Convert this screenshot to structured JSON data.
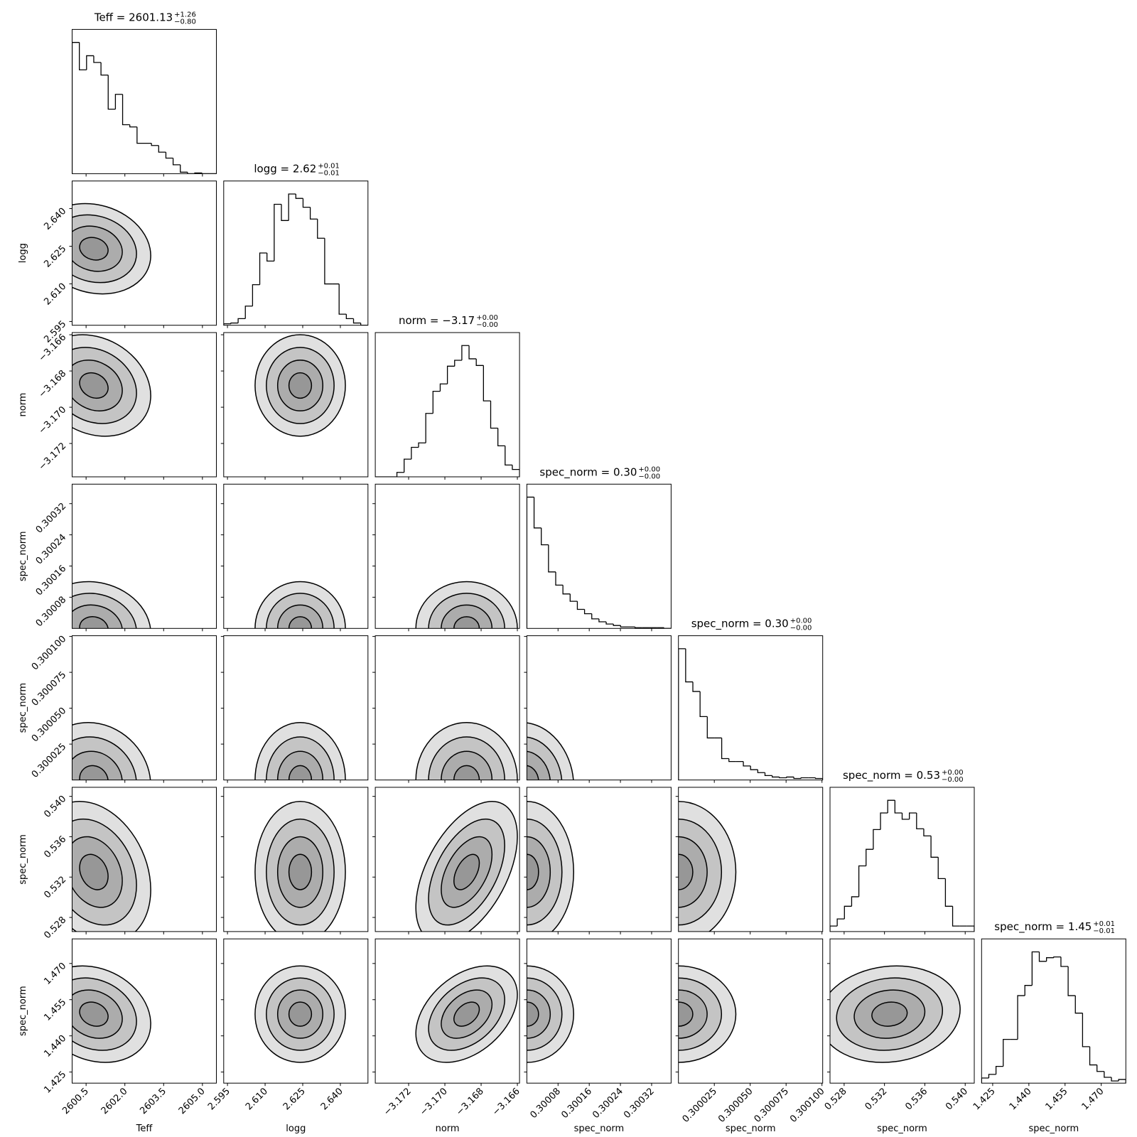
{
  "chart_data": {
    "type": "corner",
    "color": "#000000",
    "levels": [
      0.5,
      1,
      1.5,
      2
    ],
    "params": [
      {
        "name": "Teff",
        "title": "Teff = 2601.13",
        "plus": "+1.26",
        "minus": "−0.80",
        "lim": [
          2599.96,
          2605.54
        ],
        "ticks": [
          2600.5,
          {
            "value": 2602,
            "label": "2602.0"
          },
          2603.5,
          {
            "value": 2605,
            "label": "2605.0"
          }
        ],
        "bins": [
          2599.96,
          2600.239,
          2600.518,
          2600.797,
          2601.076,
          2601.355,
          2601.634,
          2601.913,
          2602.192,
          2602.471,
          2602.75,
          2603.029,
          2603.308,
          2603.587,
          2603.866,
          2604.145,
          2604.424,
          2604.703,
          2604.982,
          2605.261,
          2605.54
        ],
        "counts": [
          177,
          140,
          159,
          150,
          133,
          87,
          107,
          66,
          63,
          41,
          41,
          38,
          29,
          21,
          12,
          2,
          0,
          1,
          0,
          0
        ],
        "mean": 2600.8,
        "sigma": 1.1
      },
      {
        "name": "logg",
        "title": "logg = 2.62",
        "plus": "+0.01",
        "minus": "−0.01",
        "lim": [
          2.5935,
          2.651
        ],
        "ticks": [
          2.595,
          {
            "value": 2.61,
            "label": "2.610"
          },
          2.625,
          {
            "value": 2.64,
            "label": "2.640"
          }
        ],
        "bins": [
          2.5935,
          2.596375,
          2.59925,
          2.602125,
          2.605,
          2.607875,
          2.61075,
          2.613625,
          2.6165,
          2.619375,
          2.62225,
          2.625125,
          2.628,
          2.630875,
          2.63375,
          2.636625,
          2.6395,
          2.642375,
          2.64525,
          2.648125,
          2.651
        ],
        "counts": [
          2,
          3,
          9,
          26,
          55,
          98,
          87,
          164,
          142,
          178,
          172,
          160,
          144,
          118,
          56,
          56,
          15,
          9,
          3,
          0
        ],
        "mean": 2.624,
        "sigma": 0.009
      },
      {
        "name": "norm",
        "title": "norm = −3.17",
        "plus": "+0.00",
        "minus": "−0.00",
        "lim": [
          -3.17384,
          -3.16588
        ],
        "ticks": [
          {
            "value": -3.172,
            "label": "−3.172"
          },
          {
            "value": -3.17,
            "label": "−3.170"
          },
          {
            "value": -3.168,
            "label": "−3.168"
          },
          {
            "value": -3.166,
            "label": "−3.166"
          }
        ],
        "bins": [
          -3.17384,
          -3.173442,
          -3.173044,
          -3.172646,
          -3.172248,
          -3.17185,
          -3.171452,
          -3.171054,
          -3.170656,
          -3.170258,
          -3.16986,
          -3.169462,
          -3.169064,
          -3.168666,
          -3.168268,
          -3.16787,
          -3.167472,
          -3.167074,
          -3.166676,
          -3.166278,
          -3.16588
        ],
        "counts": [
          0,
          0,
          0,
          6,
          24,
          40,
          46,
          86,
          116,
          126,
          150,
          158,
          178,
          160,
          151,
          103,
          66,
          42,
          16,
          10
        ],
        "mean": -3.1688,
        "sigma": 0.0014
      },
      {
        "name": "spec_norm",
        "title": "spec_norm = 0.30",
        "plus": "+0.00",
        "minus": "−0.00",
        "lim": [
          0.3,
          0.30037
        ],
        "ticks": [
          0.30008,
          0.30016,
          0.30024,
          0.30032
        ],
        "bins": [
          0.3,
          0.3000185,
          0.300037,
          0.3000555,
          0.300074,
          0.3000925,
          0.300111,
          0.3001295,
          0.300148,
          0.3001665,
          0.300185,
          0.3002035,
          0.300222,
          0.3002405,
          0.300259,
          0.3002775,
          0.300296,
          0.3003145,
          0.300333,
          0.3003515,
          0.30037
        ],
        "counts": [
          179,
          137,
          114,
          77,
          59,
          47,
          37,
          26,
          20,
          13,
          9,
          6,
          4,
          2,
          2,
          1,
          1,
          1,
          1,
          0
        ],
        "mean": 0.3,
        "sigma": 6e-05
      },
      {
        "name": "spec_norm",
        "title": "spec_norm = 0.30",
        "plus": "+0.00",
        "minus": "−0.00",
        "lim": [
          0.3,
          0.3001005
        ],
        "ticks": [
          0.300025,
          {
            "value": 0.30005,
            "label": "0.300050"
          },
          0.300075,
          {
            "value": 0.3001,
            "label": "0.300100"
          }
        ],
        "bins": [
          0.3,
          0.300005025,
          0.30001005,
          0.300015075,
          0.3000201,
          0.300025125,
          0.30003015,
          0.300035175,
          0.3000402,
          0.300045225,
          0.30005025,
          0.300055275,
          0.3000603,
          0.300065325,
          0.30007035,
          0.300075375,
          0.3000804,
          0.300085425,
          0.30009045,
          0.300095475,
          0.3001005
        ],
        "counts": [
          178,
          133,
          120,
          86,
          57,
          57,
          29,
          25,
          25,
          19,
          14,
          10,
          6,
          4,
          3,
          4,
          2,
          3,
          3,
          2
        ],
        "mean": 0.3,
        "sigma": 2e-05
      },
      {
        "name": "spec_norm",
        "title": "spec_norm = 0.53",
        "plus": "+0.00",
        "minus": "−0.00",
        "lim": [
          0.5266,
          0.5409
        ],
        "ticks": [
          0.528,
          0.532,
          0.536,
          {
            "value": 0.54,
            "label": "0.540"
          }
        ],
        "bins": [
          0.5266,
          0.527315,
          0.52803,
          0.528745,
          0.52946,
          0.530175,
          0.53089,
          0.531605,
          0.53232,
          0.533035,
          0.53375,
          0.534465,
          0.53518,
          0.535895,
          0.53661,
          0.537325,
          0.53804,
          0.538755,
          0.53947,
          0.540185,
          0.5409
        ],
        "counts": [
          7,
          16,
          32,
          44,
          83,
          104,
          129,
          150,
          166,
          150,
          142,
          150,
          130,
          121,
          94,
          67,
          32,
          7,
          7,
          7
        ],
        "mean": 0.5325,
        "sigma": 0.0035
      },
      {
        "name": "spec_norm",
        "title": "spec_norm = 1.45",
        "plus": "+0.01",
        "minus": "−0.01",
        "lim": [
          1.4204,
          1.4802
        ],
        "ticks": [
          1.425,
          {
            "value": 1.44,
            "label": "1.440"
          },
          1.455,
          {
            "value": 1.47,
            "label": "1.470"
          }
        ],
        "bins": [
          1.4204,
          1.42339,
          1.42638,
          1.42937,
          1.43236,
          1.43535,
          1.43834,
          1.44133,
          1.44432,
          1.44731,
          1.4503,
          1.45329,
          1.45628,
          1.45927,
          1.46226,
          1.46525,
          1.46824,
          1.47123,
          1.47422,
          1.47721,
          1.4802
        ],
        "counts": [
          7,
          12,
          23,
          60,
          60,
          120,
          134,
          180,
          167,
          172,
          173,
          160,
          120,
          96,
          50,
          25,
          16,
          8,
          3,
          5
        ],
        "mean": 1.449,
        "sigma": 0.01
      }
    ],
    "rho": [
      [],
      [
        -0.15
      ],
      [
        -0.2,
        0.0
      ],
      [
        -0.1,
        0.0,
        0.0
      ],
      [
        -0.1,
        0.0,
        0.0,
        -0.1
      ],
      [
        -0.25,
        0.0,
        0.5,
        0.0,
        0.0
      ],
      [
        -0.2,
        0.0,
        0.4,
        0.0,
        0.0,
        0.1
      ]
    ]
  }
}
